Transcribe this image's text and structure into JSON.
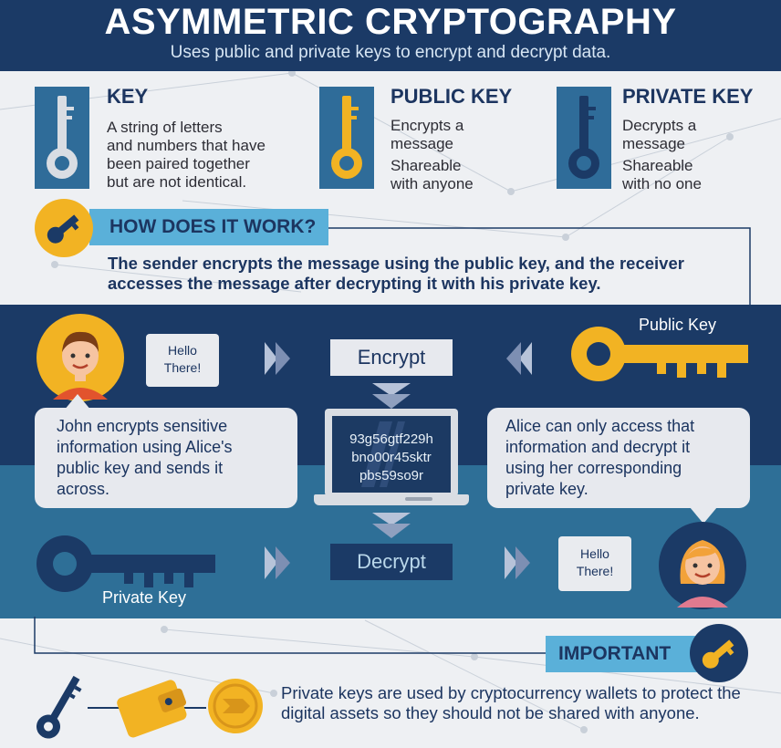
{
  "header": {
    "title": "ASYMMETRIC CRYPTOGRAPHY",
    "subtitle": "Uses public and private keys to encrypt and decrypt data."
  },
  "definitions": [
    {
      "title": "KEY",
      "lines": [
        "A string of letters",
        "and numbers that have",
        "been paired together",
        "but are not identical."
      ]
    },
    {
      "title": "PUBLIC KEY",
      "lines": [
        "Encrypts a",
        "message",
        "Shareable",
        "with anyone"
      ]
    },
    {
      "title": "PRIVATE KEY",
      "lines": [
        "Decrypts a",
        "message",
        "Shareable",
        "with no one"
      ]
    }
  ],
  "how": {
    "heading": "HOW DOES IT WORK?",
    "text": "The sender encrypts the message using the public key, and the receiver accesses the message after decrypting it with his private key."
  },
  "flow": {
    "john_note": [
      "Hello",
      "There!"
    ],
    "alice_note": [
      "Hello",
      "There!"
    ],
    "encrypt_label": "Encrypt",
    "decrypt_label": "Decrypt",
    "cipher_lines": [
      "93g56gtf229h",
      "bno00r45sktr",
      "pbs59so9r"
    ],
    "public_key_label": "Public Key",
    "private_key_label": "Private Key",
    "john_bubble": [
      "John encrypts sensitive",
      "information using Alice's",
      "public key and sends it",
      "across."
    ],
    "alice_bubble": [
      "Alice can only access that",
      "information and decrypt it",
      "using her corresponding",
      "private key."
    ]
  },
  "important": {
    "heading": "IMPORTANT",
    "text": "Private keys are used by cryptocurrency wallets to protect the digital assets so they should not be shared with anyone."
  },
  "colors": {
    "navy": "#1b3a66",
    "steel": "#2e6f97",
    "sky": "#5ab0d9",
    "gold": "#f2b323",
    "silver": "#d9dde3"
  }
}
